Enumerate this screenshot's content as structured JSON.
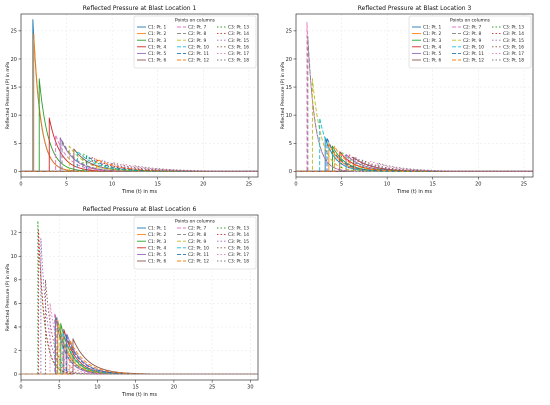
{
  "legend_title": "Points on columns",
  "legend_labels": [
    "C1: Pt. 1",
    "C1: Pt. 2",
    "C1: Pt. 3",
    "C1: Pt. 4",
    "C1: Pt. 5",
    "C1: Pt. 6",
    "C2: Pt. 7",
    "C2: Pt. 8",
    "C2: Pt. 9",
    "C2: Pt. 10",
    "C2: Pt. 11",
    "C2: Pt. 12",
    "C3: Pt. 13",
    "C3: Pt. 14",
    "C3: Pt. 15",
    "C3: Pt. 16",
    "C3: Pt. 17",
    "C3: Pt. 18"
  ],
  "colors": [
    "#1f77b4",
    "#ff7f0e",
    "#2ca02c",
    "#d62728",
    "#9467bd",
    "#8c564b",
    "#e377c2",
    "#7f7f7f",
    "#bcbd22",
    "#17becf"
  ],
  "chart_data": [
    {
      "type": "line",
      "title": "Reflected Pressure at Blast Location 1",
      "xlabel": "Time (t) in ms",
      "ylabel": "Reflected Pressure (P) in mPa",
      "xlim": [
        0,
        26
      ],
      "ylim": [
        -1,
        28
      ],
      "xticks": [
        0,
        5,
        10,
        15,
        20,
        25
      ],
      "yticks": [
        0,
        5,
        10,
        15,
        20,
        25
      ],
      "grid": true,
      "legend_position": "top-right",
      "series": [
        {
          "name": "C1: Pt. 1",
          "arrival": 1.3,
          "peak": 27.0,
          "decay": 0.8
        },
        {
          "name": "C1: Pt. 2",
          "arrival": 1.4,
          "peak": 24.5,
          "decay": 0.8
        },
        {
          "name": "C1: Pt. 3",
          "arrival": 2.0,
          "peak": 16.5,
          "decay": 1.0
        },
        {
          "name": "C1: Pt. 4",
          "arrival": 3.1,
          "peak": 9.5,
          "decay": 1.2
        },
        {
          "name": "C1: Pt. 5",
          "arrival": 4.3,
          "peak": 6.0,
          "decay": 1.5
        },
        {
          "name": "C1: Pt. 6",
          "arrival": 5.8,
          "peak": 4.0,
          "decay": 1.8
        },
        {
          "name": "C2: Pt. 7",
          "arrival": 3.8,
          "peak": 6.5,
          "decay": 1.4
        },
        {
          "name": "C2: Pt. 8",
          "arrival": 4.5,
          "peak": 5.5,
          "decay": 1.6
        },
        {
          "name": "C2: Pt. 9",
          "arrival": 5.3,
          "peak": 4.5,
          "decay": 1.8
        },
        {
          "name": "C2: Pt. 10",
          "arrival": 6.2,
          "peak": 3.6,
          "decay": 2.0
        },
        {
          "name": "C2: Pt. 11",
          "arrival": 7.2,
          "peak": 2.8,
          "decay": 2.2
        },
        {
          "name": "C2: Pt. 12",
          "arrival": 8.3,
          "peak": 2.2,
          "decay": 2.5
        },
        {
          "name": "C3: Pt. 13",
          "arrival": 6.8,
          "peak": 3.2,
          "decay": 2.0
        },
        {
          "name": "C3: Pt. 14",
          "arrival": 7.8,
          "peak": 2.5,
          "decay": 2.3
        },
        {
          "name": "C3: Pt. 15",
          "arrival": 8.9,
          "peak": 2.0,
          "decay": 2.6
        },
        {
          "name": "C3: Pt. 16",
          "arrival": 10.0,
          "peak": 1.6,
          "decay": 2.9
        },
        {
          "name": "C3: Pt. 17",
          "arrival": 11.2,
          "peak": 1.3,
          "decay": 3.2
        },
        {
          "name": "C3: Pt. 18",
          "arrival": 12.5,
          "peak": 1.0,
          "decay": 3.5
        }
      ]
    },
    {
      "type": "line",
      "title": "Reflected Pressure at Blast Location 3",
      "xlabel": "Time (t) in ms",
      "ylabel": "Reflected Pressure (P) in mPa",
      "xlim": [
        0,
        26
      ],
      "ylim": [
        -1,
        28
      ],
      "xticks": [
        0,
        5,
        10,
        15,
        20,
        25
      ],
      "yticks": [
        0,
        5,
        10,
        15,
        20,
        25
      ],
      "grid": true,
      "legend_position": "top-right",
      "series": [
        {
          "name": "C1: Pt. 1",
          "arrival": 3.2,
          "peak": 6.0,
          "decay": 1.2
        },
        {
          "name": "C1: Pt. 2",
          "arrival": 3.6,
          "peak": 5.0,
          "decay": 1.3
        },
        {
          "name": "C1: Pt. 3",
          "arrival": 4.0,
          "peak": 4.5,
          "decay": 1.4
        },
        {
          "name": "C1: Pt. 4",
          "arrival": 4.8,
          "peak": 3.5,
          "decay": 1.6
        },
        {
          "name": "C1: Pt. 5",
          "arrival": 5.5,
          "peak": 3.0,
          "decay": 1.8
        },
        {
          "name": "C1: Pt. 6",
          "arrival": 6.3,
          "peak": 2.5,
          "decay": 2.0
        },
        {
          "name": "C2: Pt. 7",
          "arrival": 1.2,
          "peak": 26.5,
          "decay": 0.8
        },
        {
          "name": "C2: Pt. 8",
          "arrival": 1.3,
          "peak": 24.0,
          "decay": 0.8
        },
        {
          "name": "C2: Pt. 9",
          "arrival": 1.8,
          "peak": 16.5,
          "decay": 1.0
        },
        {
          "name": "C2: Pt. 10",
          "arrival": 2.6,
          "peak": 9.5,
          "decay": 1.2
        },
        {
          "name": "C2: Pt. 11",
          "arrival": 3.4,
          "peak": 6.0,
          "decay": 1.4
        },
        {
          "name": "C2: Pt. 12",
          "arrival": 4.2,
          "peak": 4.5,
          "decay": 1.6
        },
        {
          "name": "C3: Pt. 13",
          "arrival": 5.0,
          "peak": 3.5,
          "decay": 1.8
        },
        {
          "name": "C3: Pt. 14",
          "arrival": 5.8,
          "peak": 3.0,
          "decay": 2.0
        },
        {
          "name": "C3: Pt. 15",
          "arrival": 6.5,
          "peak": 2.5,
          "decay": 2.2
        },
        {
          "name": "C3: Pt. 16",
          "arrival": 7.3,
          "peak": 2.0,
          "decay": 2.4
        },
        {
          "name": "C3: Pt. 17",
          "arrival": 8.2,
          "peak": 1.8,
          "decay": 2.6
        },
        {
          "name": "C3: Pt. 18",
          "arrival": 9.0,
          "peak": 1.5,
          "decay": 2.8
        }
      ]
    },
    {
      "type": "line",
      "title": "Reflected Pressure at Blast Location 6",
      "xlabel": "Time (t) in ms",
      "ylabel": "Reflected Pressure (P) in mPa",
      "xlim": [
        0,
        31
      ],
      "ylim": [
        -0.5,
        13.5
      ],
      "xticks": [
        0,
        5,
        10,
        15,
        20,
        25,
        30
      ],
      "yticks": [
        0,
        2,
        4,
        6,
        8,
        10,
        12
      ],
      "grid": true,
      "legend_position": "top-right",
      "series": [
        {
          "name": "C1: Pt. 1",
          "arrival": 4.5,
          "peak": 5.0,
          "decay": 1.3
        },
        {
          "name": "C1: Pt. 2",
          "arrival": 4.8,
          "peak": 4.6,
          "decay": 1.4
        },
        {
          "name": "C1: Pt. 3",
          "arrival": 5.2,
          "peak": 4.3,
          "decay": 1.5
        },
        {
          "name": "C1: Pt. 4",
          "arrival": 5.6,
          "peak": 3.8,
          "decay": 1.6
        },
        {
          "name": "C1: Pt. 5",
          "arrival": 6.0,
          "peak": 3.4,
          "decay": 1.8
        },
        {
          "name": "C1: Pt. 6",
          "arrival": 6.8,
          "peak": 3.0,
          "decay": 2.0
        },
        {
          "name": "C2: Pt. 7",
          "arrival": 4.4,
          "peak": 5.2,
          "decay": 1.3
        },
        {
          "name": "C2: Pt. 8",
          "arrival": 4.7,
          "peak": 4.8,
          "decay": 1.4
        },
        {
          "name": "C2: Pt. 9",
          "arrival": 5.0,
          "peak": 4.2,
          "decay": 1.5
        },
        {
          "name": "C2: Pt. 10",
          "arrival": 5.4,
          "peak": 3.8,
          "decay": 1.6
        },
        {
          "name": "C2: Pt. 11",
          "arrival": 5.9,
          "peak": 3.3,
          "decay": 1.8
        },
        {
          "name": "C2: Pt. 12",
          "arrival": 6.4,
          "peak": 2.9,
          "decay": 2.0
        },
        {
          "name": "C3: Pt. 13",
          "arrival": 2.2,
          "peak": 13.0,
          "decay": 0.8
        },
        {
          "name": "C3: Pt. 14",
          "arrival": 2.3,
          "peak": 12.2,
          "decay": 0.8
        },
        {
          "name": "C3: Pt. 15",
          "arrival": 2.6,
          "peak": 11.5,
          "decay": 0.9
        },
        {
          "name": "C3: Pt. 16",
          "arrival": 3.2,
          "peak": 8.0,
          "decay": 1.0
        },
        {
          "name": "C3: Pt. 17",
          "arrival": 3.8,
          "peak": 6.0,
          "decay": 1.2
        },
        {
          "name": "C3: Pt. 18",
          "arrival": 4.5,
          "peak": 4.8,
          "decay": 1.4
        }
      ]
    }
  ]
}
